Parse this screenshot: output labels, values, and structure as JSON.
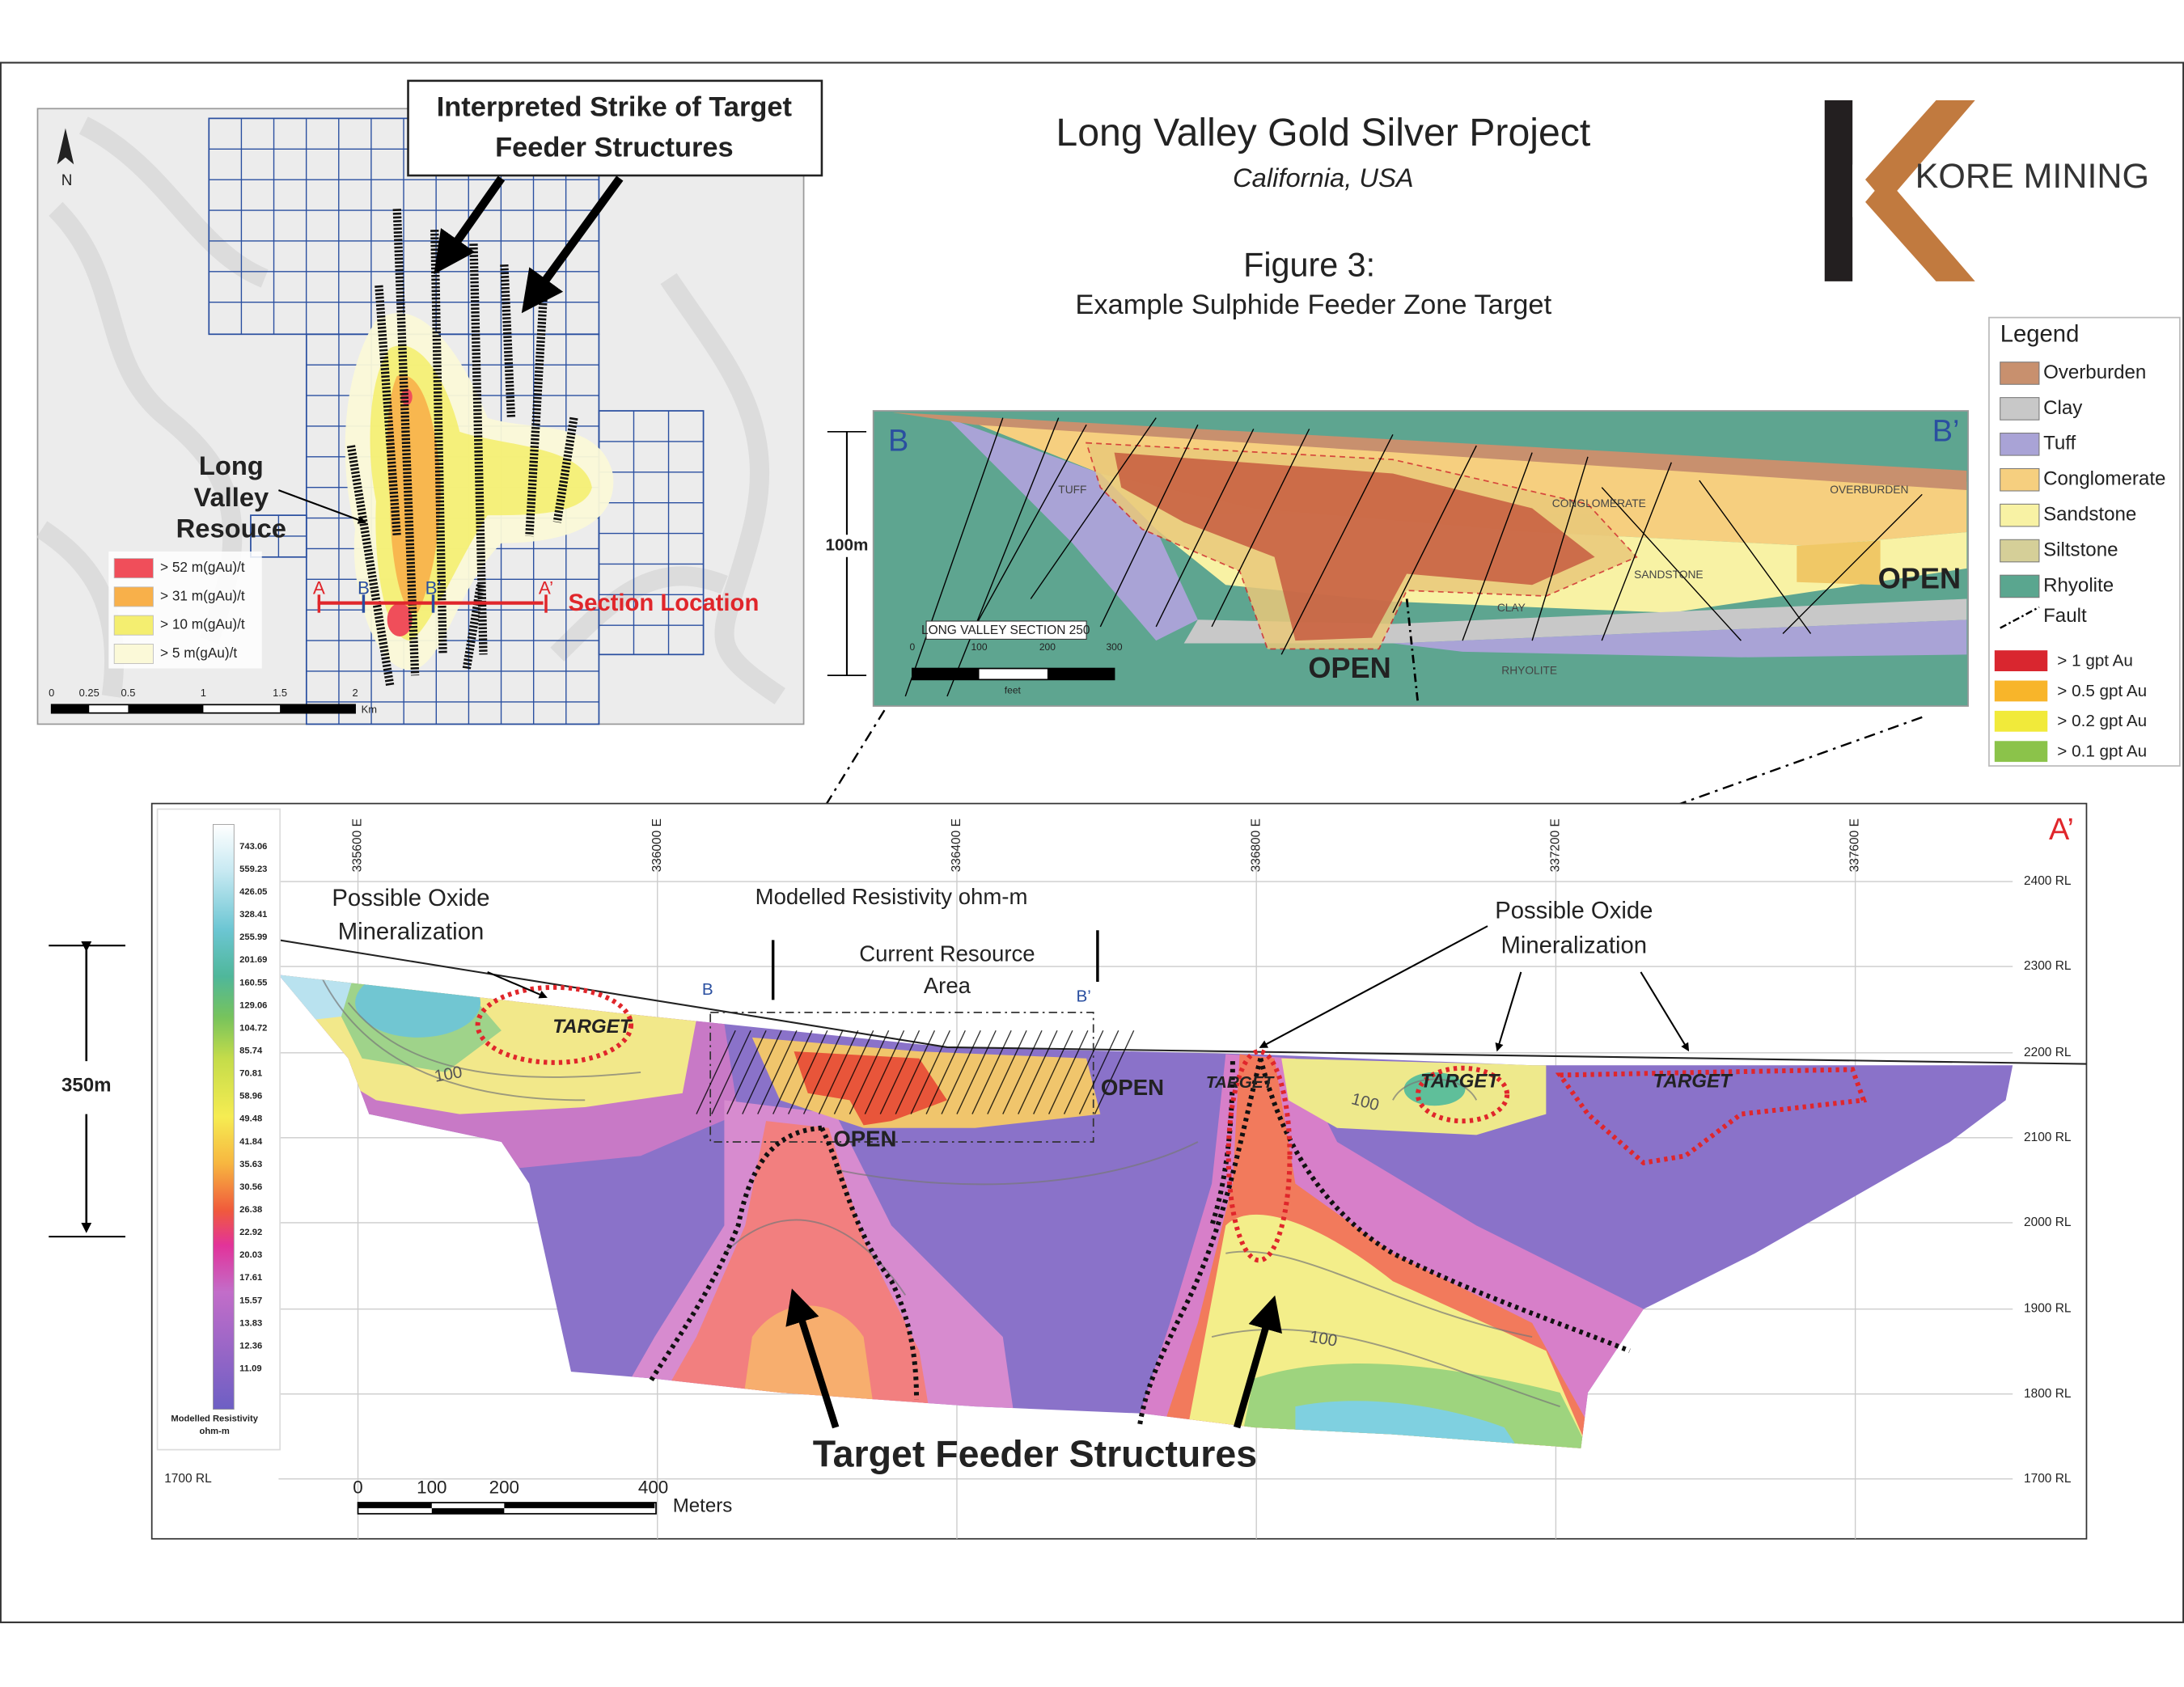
{
  "header": {
    "title": "Long Valley Gold Silver Project",
    "subtitle": "California, USA",
    "figure": "Figure 3:",
    "caption": "Example Sulphide Feeder Zone Target",
    "logo": "KORE MINING"
  },
  "map": {
    "north": "N",
    "callout": [
      "Interpreted Strike of Target",
      "Feeder Structures"
    ],
    "resource_label": [
      "Long",
      "Valley",
      "Resouce"
    ],
    "legend": [
      "> 52 m(gAu)/t",
      "> 31 m(gAu)/t",
      "> 10 m(gAu)/t",
      "> 5 m(gAu)/t"
    ],
    "section_markers": [
      "A",
      "B",
      "B’",
      "A’"
    ],
    "section_location": "Section Location",
    "scale": [
      "0",
      "0.25",
      "0.5",
      "1",
      "1.5",
      "2"
    ],
    "scale_unit": "Km"
  },
  "section": {
    "corner_left": "B",
    "corner_right": "B’",
    "height": "100m",
    "name": "LONG VALLEY SECTION 250",
    "scale": [
      "0",
      "100",
      "200",
      "300"
    ],
    "scale_unit": "feet",
    "units": [
      "TUFF",
      "CONGLOMERATE",
      "OVERBURDEN",
      "SANDSTONE",
      "CLAY",
      "RHYOLITE"
    ],
    "open": [
      "OPEN",
      "OPEN"
    ]
  },
  "legend": {
    "title": "Legend",
    "units": [
      "Overburden",
      "Clay",
      "Tuff",
      "Conglomerate",
      "Sandstone",
      "Siltstone",
      "Rhyolite"
    ],
    "fault": "Fault",
    "grades": [
      "> 1 gpt Au",
      "> 0.5 gpt Au",
      "> 0.2 gpt Au",
      "> 0.1 gpt Au"
    ]
  },
  "resistivity": {
    "corner_left": "A",
    "corner_right": "A’",
    "colorbar": [
      "743.06",
      "559.23",
      "426.05",
      "328.41",
      "255.99",
      "201.69",
      "160.55",
      "129.06",
      "104.72",
      "85.74",
      "70.81",
      "58.96",
      "49.48",
      "41.84",
      "35.63",
      "30.56",
      "26.38",
      "22.92",
      "20.03",
      "17.61",
      "15.57",
      "13.83",
      "12.36",
      "11.09"
    ],
    "colorbar_title": [
      "Modelled Resistivity",
      "ohm-m"
    ],
    "eastings": [
      "335600 E",
      "336000 E",
      "336400 E",
      "336800 E",
      "337200 E",
      "337600 E"
    ],
    "rl": [
      "2400 RL",
      "2300 RL",
      "2200 RL",
      "2100 RL",
      "2000 RL",
      "1900 RL",
      "1800 RL",
      "1700 RL"
    ],
    "rl_left": "1700 RL",
    "height": "350m",
    "title": "Modelled Resistivity ohm-m",
    "resource": [
      "Current Resource",
      "Area"
    ],
    "bb": [
      "B",
      "B’"
    ],
    "oxide_left": [
      "Possible Oxide",
      "Mineralization"
    ],
    "oxide_right": [
      "Possible Oxide",
      "Mineralization"
    ],
    "targets": [
      "TARGET",
      "TARGET",
      "TARGET",
      "TARGET"
    ],
    "open": [
      "OPEN",
      "OPEN"
    ],
    "contours": [
      "100",
      "100",
      "100"
    ],
    "feeder": "Target Feeder Structures",
    "scale": [
      "0",
      "100",
      "200",
      "400"
    ],
    "scale_unit": "Meters"
  }
}
